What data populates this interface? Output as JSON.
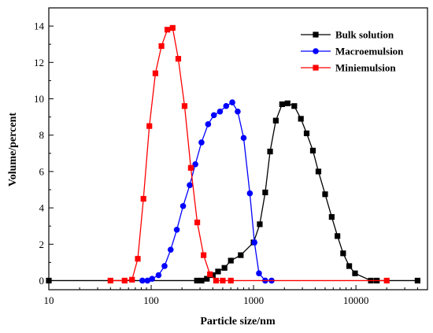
{
  "chart_data": {
    "type": "line",
    "xscale": "log",
    "xlim": [
      10,
      50000
    ],
    "ylim": [
      -0.5,
      15
    ],
    "xticks": [
      10,
      100,
      1000,
      10000
    ],
    "xtick_labels": [
      "10",
      "100",
      "1000",
      "10000"
    ],
    "yticks": [
      0,
      2,
      4,
      6,
      8,
      10,
      12,
      14
    ],
    "ytick_labels": [
      "0",
      "2",
      "4",
      "6",
      "8",
      "10",
      "12",
      "14"
    ],
    "xlabel": "Particle size/nm",
    "ylabel": "Volume/percent",
    "legend_position": "top-right",
    "grid": false,
    "series": [
      {
        "name": "Bulk solution",
        "color": "#000000",
        "marker": "square",
        "points": [
          [
            10,
            0
          ],
          [
            280,
            0
          ],
          [
            310,
            0
          ],
          [
            350,
            0.1
          ],
          [
            400,
            0.3
          ],
          [
            450,
            0.5
          ],
          [
            520,
            0.7
          ],
          [
            600,
            1.1
          ],
          [
            750,
            1.4
          ],
          [
            1000,
            2.1
          ],
          [
            1150,
            3.1
          ],
          [
            1300,
            4.85
          ],
          [
            1450,
            7.1
          ],
          [
            1650,
            8.8
          ],
          [
            1900,
            9.7
          ],
          [
            2150,
            9.75
          ],
          [
            2500,
            9.6
          ],
          [
            2900,
            8.9
          ],
          [
            3300,
            8.1
          ],
          [
            3800,
            7.15
          ],
          [
            4300,
            6.0
          ],
          [
            5000,
            4.75
          ],
          [
            5800,
            3.5
          ],
          [
            6600,
            2.45
          ],
          [
            7500,
            1.5
          ],
          [
            8600,
            0.8
          ],
          [
            9800,
            0.4
          ],
          [
            14000,
            0
          ],
          [
            16000,
            0
          ],
          [
            40000,
            0
          ]
        ]
      },
      {
        "name": "Macroemulsion",
        "color": "#0000ff",
        "marker": "circle",
        "points": [
          [
            82,
            0
          ],
          [
            92,
            0
          ],
          [
            102,
            0.1
          ],
          [
            118,
            0.3
          ],
          [
            135,
            0.8
          ],
          [
            155,
            1.7
          ],
          [
            178,
            2.8
          ],
          [
            205,
            4.1
          ],
          [
            238,
            5.25
          ],
          [
            270,
            6.4
          ],
          [
            310,
            7.6
          ],
          [
            360,
            8.6
          ],
          [
            410,
            9.1
          ],
          [
            470,
            9.3
          ],
          [
            540,
            9.6
          ],
          [
            620,
            9.8
          ],
          [
            700,
            9.3
          ],
          [
            800,
            7.85
          ],
          [
            920,
            4.8
          ],
          [
            1020,
            2.1
          ],
          [
            1130,
            0.4
          ],
          [
            1300,
            0
          ],
          [
            1500,
            0
          ]
        ]
      },
      {
        "name": "Miniemulsion",
        "color": "#ff0000",
        "marker": "square",
        "points": [
          [
            40,
            0
          ],
          [
            55,
            0
          ],
          [
            65,
            0.05
          ],
          [
            74,
            1.2
          ],
          [
            84,
            4.5
          ],
          [
            96,
            8.5
          ],
          [
            110,
            11.4
          ],
          [
            126,
            12.9
          ],
          [
            144,
            13.8
          ],
          [
            162,
            13.9
          ],
          [
            184,
            12.2
          ],
          [
            212,
            9.6
          ],
          [
            244,
            6.2
          ],
          [
            282,
            3.2
          ],
          [
            325,
            1.4
          ],
          [
            375,
            0.35
          ],
          [
            430,
            0
          ],
          [
            500,
            0
          ],
          [
            600,
            0
          ],
          [
            20000,
            0
          ]
        ]
      }
    ]
  }
}
